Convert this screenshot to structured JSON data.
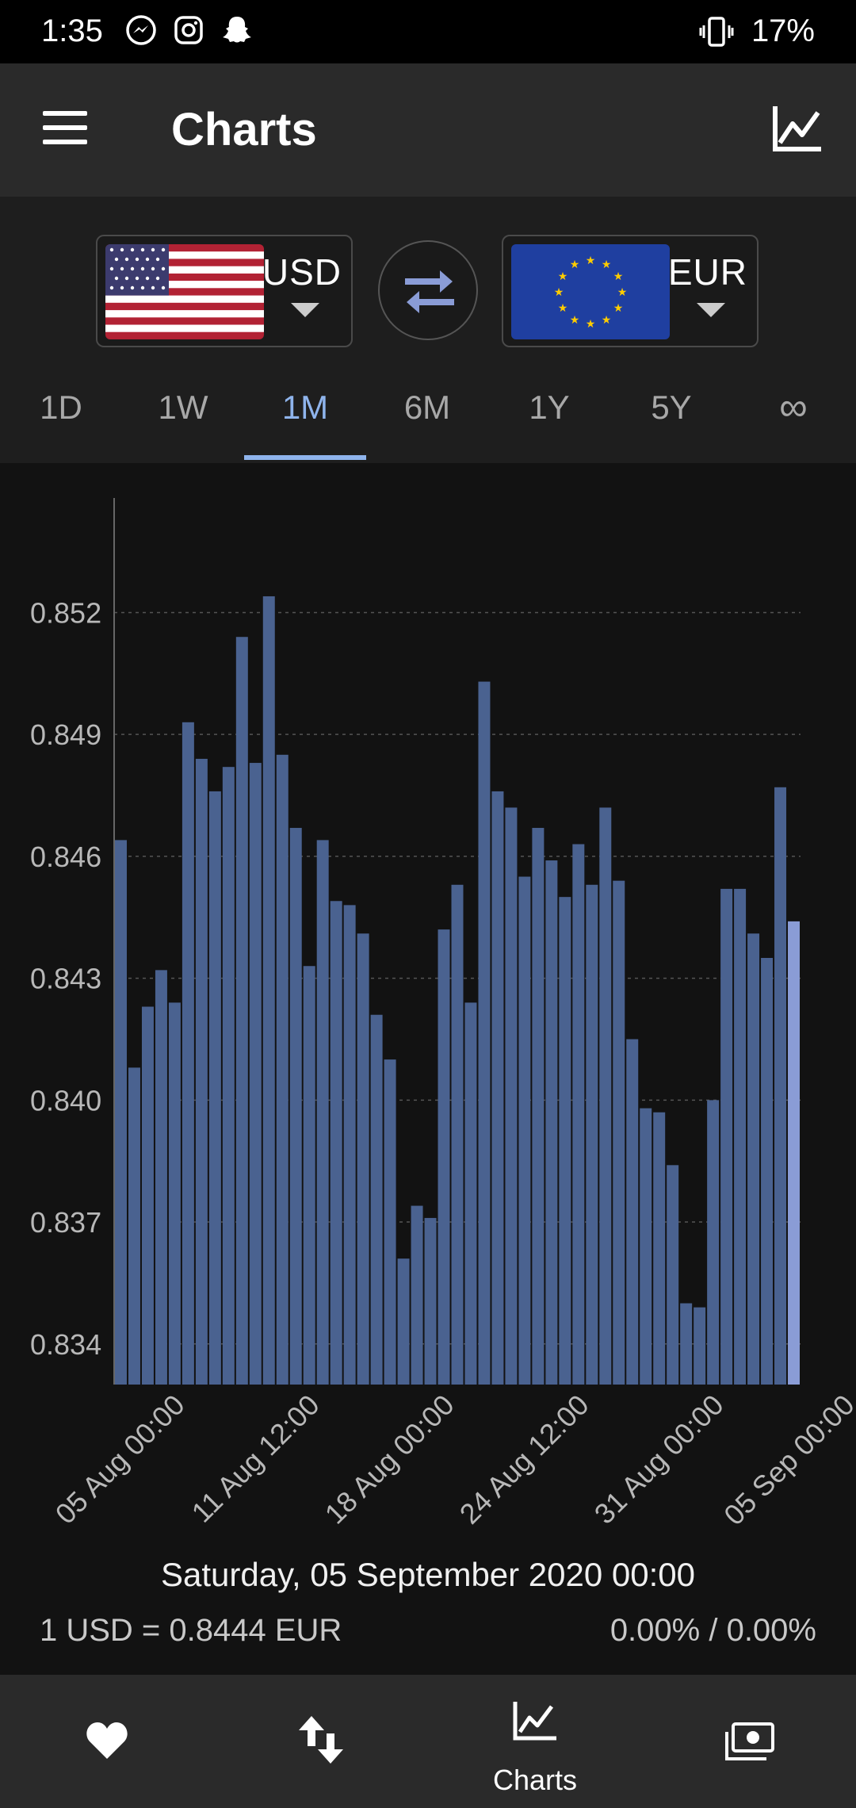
{
  "status": {
    "time": "1:35",
    "battery": "17%"
  },
  "app_bar": {
    "title": "Charts"
  },
  "currencies": {
    "from": "USD",
    "to": "EUR"
  },
  "tabs": [
    "1D",
    "1W",
    "1M",
    "6M",
    "1Y",
    "5Y",
    "∞"
  ],
  "active_tab": "1M",
  "info": {
    "date": "Saturday, 05 September 2020 00:00",
    "rate": "1 USD = 0.8444 EUR",
    "change": "0.00% / 0.00%"
  },
  "bottom_nav": {
    "charts_label": "Charts"
  },
  "colors": {
    "accent": "#8fb4ec",
    "bar": "#4a6290",
    "bar_highlight": "#8a9cd6",
    "background": "#121212"
  },
  "chart_data": {
    "type": "bar",
    "x_tick_labels": [
      "05 Aug 00:00",
      "11 Aug 12:00",
      "18 Aug 00:00",
      "24 Aug 12:00",
      "31 Aug 00:00",
      "05 Sep 00:00"
    ],
    "y_ticks": [
      0.834,
      0.837,
      0.84,
      0.843,
      0.846,
      0.849,
      0.852
    ],
    "y_tick_labels": [
      "0.834",
      "0.837",
      "0.840",
      "0.843",
      "0.846",
      "0.849",
      "0.852"
    ],
    "ylim": [
      0.833,
      0.8548
    ],
    "grid": true,
    "values": [
      0.8464,
      0.8408,
      0.8423,
      0.8432,
      0.8424,
      0.8493,
      0.8484,
      0.8476,
      0.8482,
      0.8514,
      0.8483,
      0.8524,
      0.8485,
      0.8467,
      0.8433,
      0.8464,
      0.8449,
      0.8448,
      0.8441,
      0.8421,
      0.841,
      0.8361,
      0.8374,
      0.8371,
      0.8442,
      0.8453,
      0.8424,
      0.8503,
      0.8476,
      0.8472,
      0.8455,
      0.8467,
      0.8459,
      0.845,
      0.8463,
      0.8453,
      0.8472,
      0.8454,
      0.8415,
      0.8398,
      0.8397,
      0.8384,
      0.835,
      0.8349,
      0.84,
      0.8452,
      0.8452,
      0.8441,
      0.8435,
      0.8477,
      0.8444
    ]
  }
}
